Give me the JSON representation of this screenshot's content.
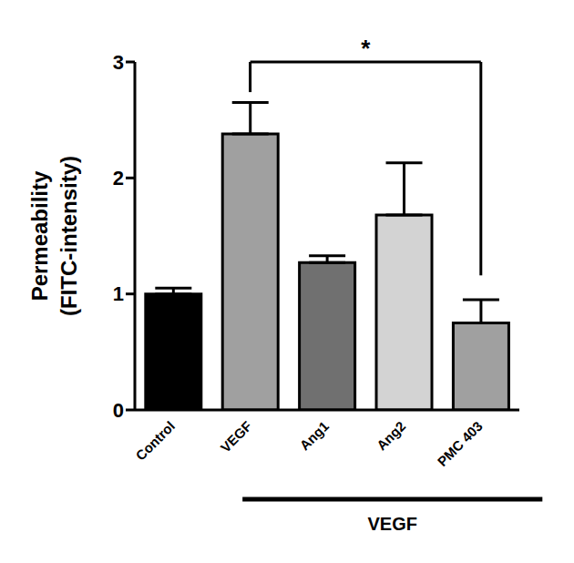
{
  "chart_data": {
    "type": "bar",
    "categories": [
      "Control",
      "VEGF",
      "Ang1",
      "Ang2",
      "PMC 403"
    ],
    "values": [
      1.0,
      2.38,
      1.27,
      1.68,
      0.75
    ],
    "errors": [
      0.05,
      0.27,
      0.06,
      0.45,
      0.2
    ],
    "colors": [
      "#000000",
      "#a0a0a0",
      "#707070",
      "#d3d3d3",
      "#a0a0a0"
    ],
    "ylim": [
      0,
      3
    ],
    "yticks": [
      0,
      1,
      2,
      3
    ],
    "y_label": "Permeability (FITC-intensity)",
    "annotations": [
      {
        "text": "*",
        "from": "VEGF",
        "to": "PMC 403"
      }
    ],
    "group_label": {
      "text": "VEGF",
      "categories": [
        "VEGF",
        "Ang1",
        "Ang2",
        "PMC 403"
      ]
    }
  }
}
